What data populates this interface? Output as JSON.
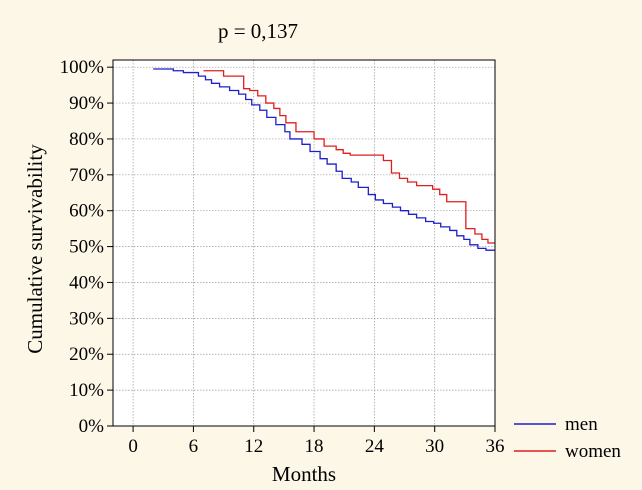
{
  "chart_data": {
    "type": "line",
    "title": "p = 0,137",
    "xlabel": "Months",
    "ylabel": "Cumulative survivability",
    "xlim": [
      -2,
      36
    ],
    "ylim": [
      0,
      1.02
    ],
    "x_ticks": [
      0,
      6,
      12,
      18,
      24,
      30,
      36
    ],
    "x_tick_labels": [
      "0",
      "6",
      "12",
      "18",
      "24",
      "30",
      "36"
    ],
    "y_ticks": [
      0,
      0.1,
      0.2,
      0.3,
      0.4,
      0.5,
      0.6,
      0.7,
      0.8,
      0.9,
      1.0
    ],
    "y_tick_labels": [
      "0%",
      "10%",
      "20%",
      "30%",
      "40%",
      "50%",
      "60%",
      "70%",
      "80%",
      "90%",
      "100%"
    ],
    "grid": true,
    "legend_position": "bottom-right, outside plot",
    "step": true,
    "series": [
      {
        "name": "men",
        "color": "#1f1fcc",
        "points": [
          [
            2.0,
            0.995
          ],
          [
            4.0,
            0.99
          ],
          [
            5.0,
            0.985
          ],
          [
            6.5,
            0.975
          ],
          [
            7.2,
            0.965
          ],
          [
            7.8,
            0.955
          ],
          [
            8.6,
            0.945
          ],
          [
            9.6,
            0.935
          ],
          [
            10.5,
            0.925
          ],
          [
            11.2,
            0.91
          ],
          [
            11.8,
            0.895
          ],
          [
            12.6,
            0.88
          ],
          [
            13.3,
            0.86
          ],
          [
            14.2,
            0.84
          ],
          [
            15.1,
            0.82
          ],
          [
            15.6,
            0.8
          ],
          [
            16.8,
            0.785
          ],
          [
            17.6,
            0.765
          ],
          [
            18.6,
            0.745
          ],
          [
            19.3,
            0.73
          ],
          [
            20.2,
            0.71
          ],
          [
            20.8,
            0.69
          ],
          [
            21.7,
            0.68
          ],
          [
            22.4,
            0.665
          ],
          [
            23.4,
            0.645
          ],
          [
            24.1,
            0.63
          ],
          [
            24.9,
            0.62
          ],
          [
            25.8,
            0.61
          ],
          [
            26.6,
            0.6
          ],
          [
            27.4,
            0.59
          ],
          [
            28.2,
            0.58
          ],
          [
            29.1,
            0.57
          ],
          [
            29.9,
            0.565
          ],
          [
            30.6,
            0.555
          ],
          [
            31.5,
            0.545
          ],
          [
            32.2,
            0.53
          ],
          [
            32.9,
            0.52
          ],
          [
            33.5,
            0.505
          ],
          [
            34.3,
            0.495
          ],
          [
            35.1,
            0.49
          ],
          [
            36.0,
            0.49
          ]
        ]
      },
      {
        "name": "women",
        "color": "#dd1f1f",
        "points": [
          [
            7.0,
            0.99
          ],
          [
            9.0,
            0.975
          ],
          [
            11.0,
            0.94
          ],
          [
            11.6,
            0.935
          ],
          [
            12.4,
            0.92
          ],
          [
            13.2,
            0.9
          ],
          [
            14.0,
            0.885
          ],
          [
            14.6,
            0.865
          ],
          [
            15.2,
            0.845
          ],
          [
            16.2,
            0.82
          ],
          [
            18.0,
            0.8
          ],
          [
            19.0,
            0.78
          ],
          [
            20.2,
            0.77
          ],
          [
            20.9,
            0.76
          ],
          [
            21.6,
            0.755
          ],
          [
            24.9,
            0.74
          ],
          [
            25.7,
            0.705
          ],
          [
            26.5,
            0.69
          ],
          [
            27.3,
            0.68
          ],
          [
            28.2,
            0.67
          ],
          [
            29.8,
            0.66
          ],
          [
            30.5,
            0.645
          ],
          [
            31.2,
            0.625
          ],
          [
            33.1,
            0.55
          ],
          [
            34.0,
            0.535
          ],
          [
            34.7,
            0.52
          ],
          [
            35.3,
            0.51
          ],
          [
            36.0,
            0.51
          ]
        ]
      }
    ]
  }
}
